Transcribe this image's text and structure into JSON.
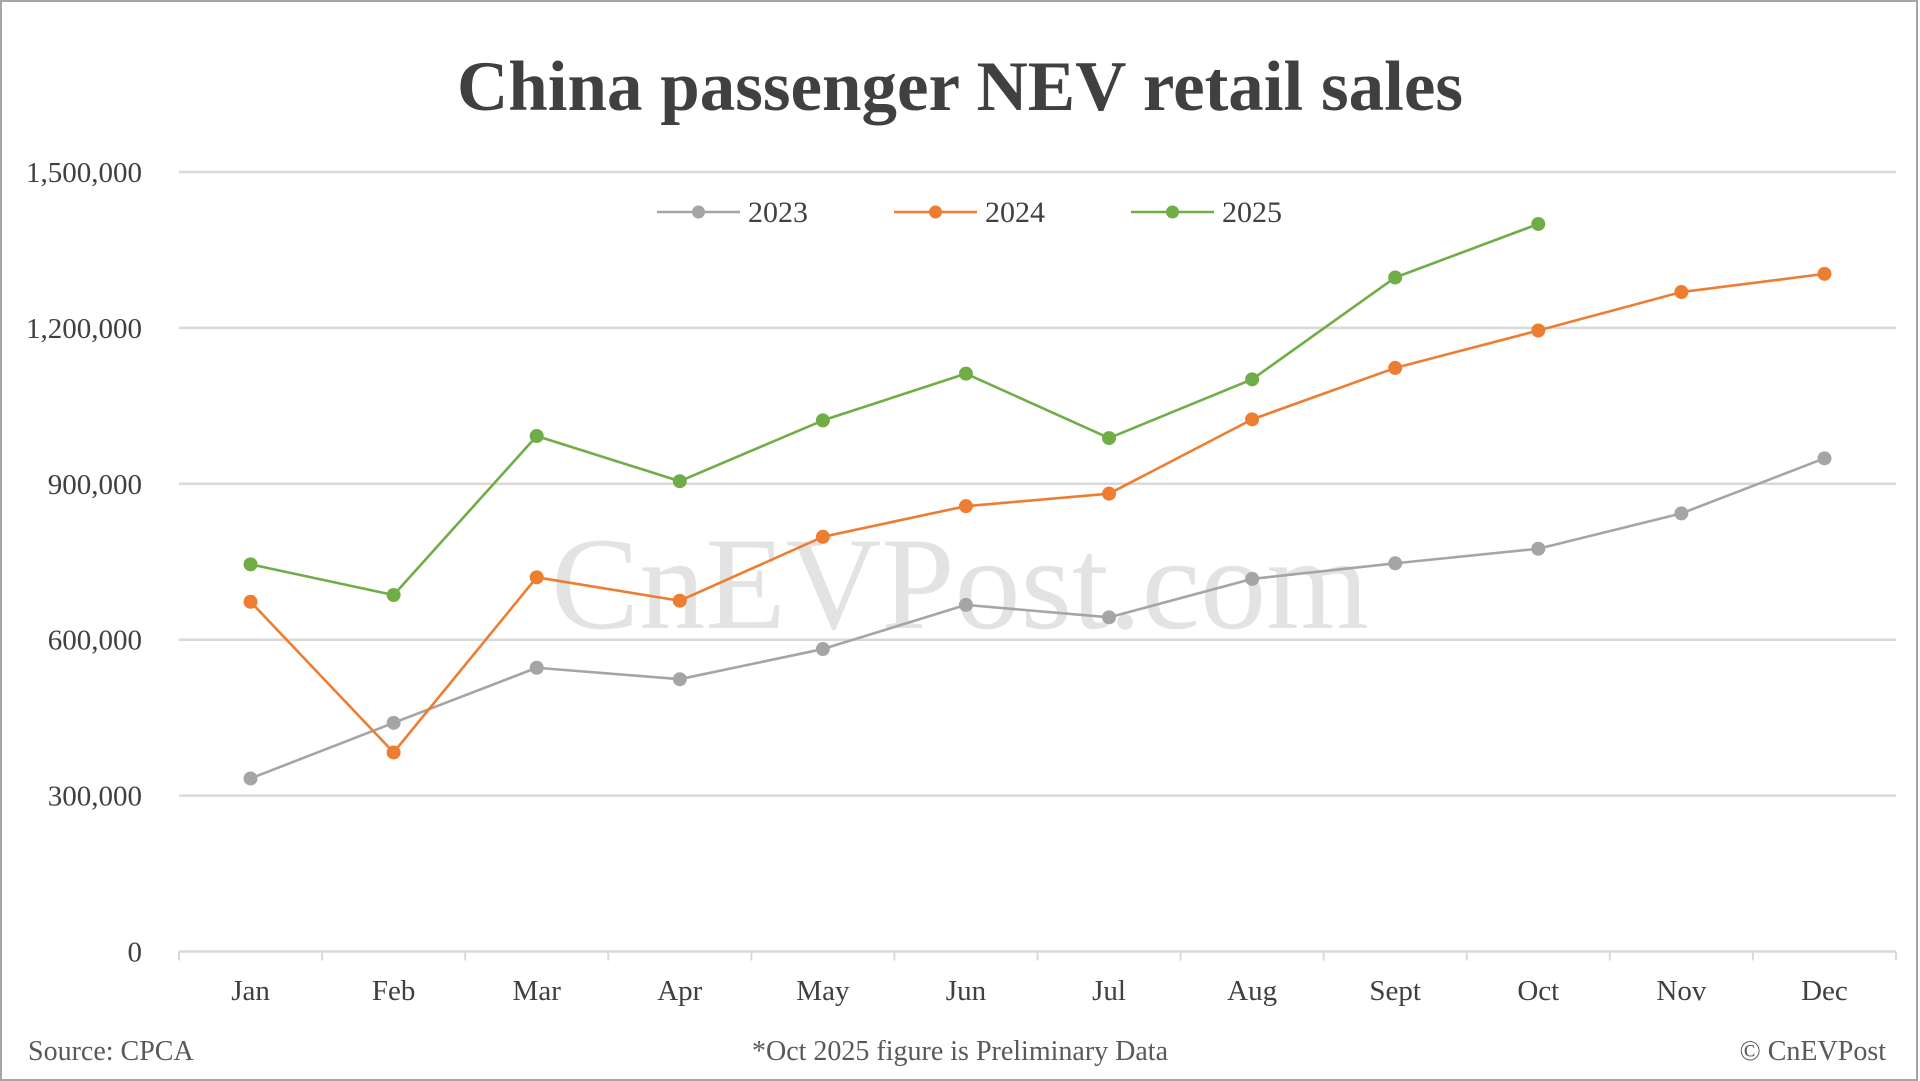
{
  "title": "China passenger NEV retail sales",
  "watermark": "CnEVPost.com",
  "footer": {
    "source": "Source: CPCA",
    "note": "*Oct 2025 figure is Preliminary Data",
    "copyright": "© CnEVPost"
  },
  "colors": {
    "2023": "#a5a5a5",
    "2024": "#ed7d31",
    "2025": "#70ad47",
    "grid": "#d9d9d9",
    "text": "#404040"
  },
  "chart_data": {
    "type": "line",
    "title": "China passenger NEV retail sales",
    "xlabel": "",
    "ylabel": "",
    "categories": [
      "Jan",
      "Feb",
      "Mar",
      "Apr",
      "May",
      "Jun",
      "Jul",
      "Aug",
      "Sept",
      "Oct",
      "Nov",
      "Dec"
    ],
    "ylim": [
      0,
      1500000
    ],
    "yticks": [
      0,
      300000,
      600000,
      900000,
      1200000,
      1500000
    ],
    "ytick_labels": [
      "0",
      "300,000",
      "600,000",
      "900,000",
      "1,200,000",
      "1,500,000"
    ],
    "grid": true,
    "legend_position": "top",
    "series": [
      {
        "name": "2023",
        "color": "#a5a5a5",
        "values": [
          333000,
          440000,
          546000,
          524000,
          582000,
          667000,
          643000,
          717000,
          747000,
          775000,
          843000,
          949000
        ]
      },
      {
        "name": "2024",
        "color": "#ed7d31",
        "values": [
          673000,
          383000,
          720000,
          675000,
          798000,
          857000,
          881000,
          1024000,
          1123000,
          1195000,
          1269000,
          1304000
        ]
      },
      {
        "name": "2025",
        "color": "#70ad47",
        "values": [
          745000,
          686000,
          992000,
          905000,
          1022000,
          1112000,
          988000,
          1101000,
          1297000,
          1400000,
          null,
          null
        ]
      }
    ],
    "annotations": [
      "*Oct 2025 figure is Preliminary Data"
    ]
  }
}
